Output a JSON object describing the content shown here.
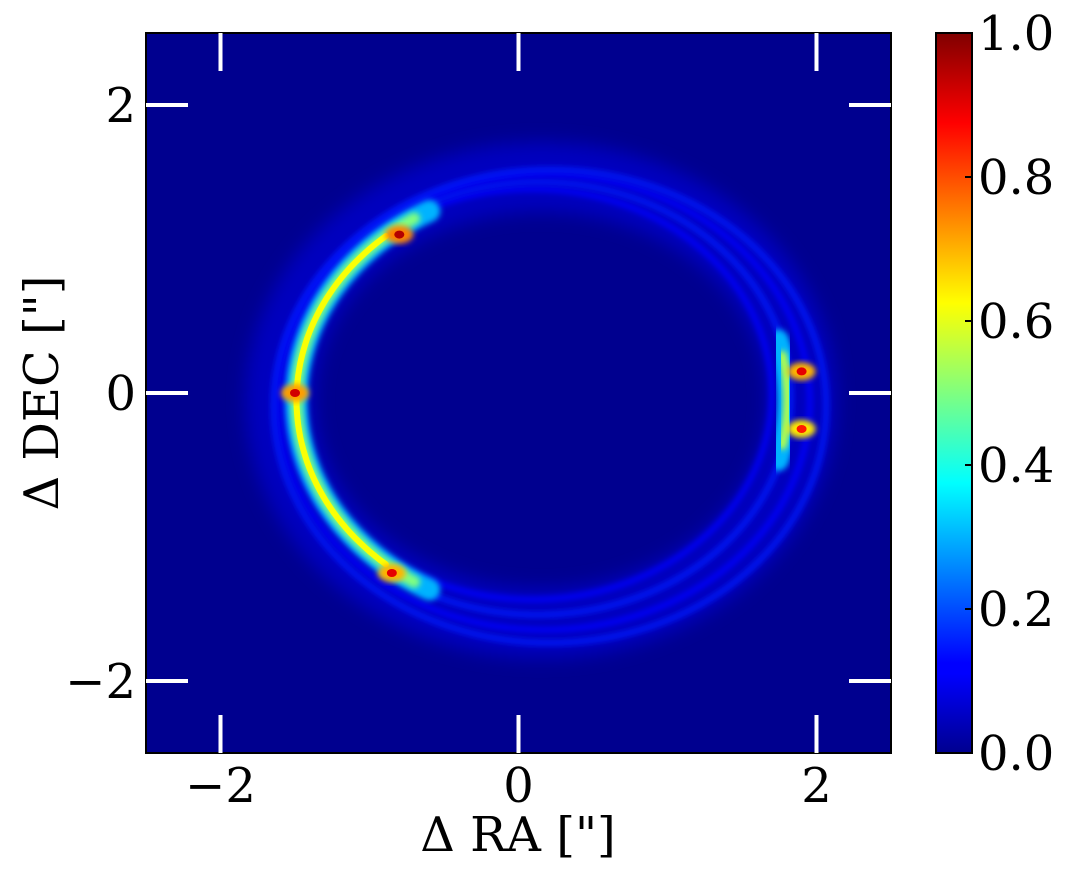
{
  "chart_data": {
    "type": "heatmap",
    "colormap": "jet",
    "background_color": "#00008f",
    "xlabel": "Δ RA [\"]",
    "ylabel": "Δ DEC [\"]",
    "xlim": [
      -2.5,
      2.5
    ],
    "ylim": [
      -2.5,
      2.5
    ],
    "xticks": [
      -2,
      0,
      2
    ],
    "yticks": [
      -2,
      0,
      2
    ],
    "xtick_labels": [
      "−2",
      "0",
      "2"
    ],
    "ytick_labels": [
      "−2",
      "0",
      "2"
    ],
    "colorbar": {
      "range": [
        0.0,
        1.0
      ],
      "ticks": [
        0.0,
        0.2,
        0.4,
        0.6,
        0.8,
        1.0
      ],
      "tick_labels": [
        "0.0",
        "0.2",
        "0.4",
        "0.6",
        "0.8",
        "1.0"
      ]
    },
    "ring": {
      "description_shape": "elliptical ring",
      "center": [
        0.15,
        -0.05
      ],
      "semi_axis_ra": 1.75,
      "semi_axis_dec": 1.55,
      "bright_arcs": [
        {
          "ra": -0.8,
          "dec": 1.1,
          "peak": 0.95
        },
        {
          "ra": -1.5,
          "dec": 0.0,
          "peak": 0.92
        },
        {
          "ra": -0.85,
          "dec": -1.25,
          "peak": 0.9
        },
        {
          "ra": 1.9,
          "dec": 0.15,
          "peak": 0.9
        },
        {
          "ra": 1.9,
          "dec": -0.25,
          "peak": 0.85
        }
      ]
    }
  }
}
